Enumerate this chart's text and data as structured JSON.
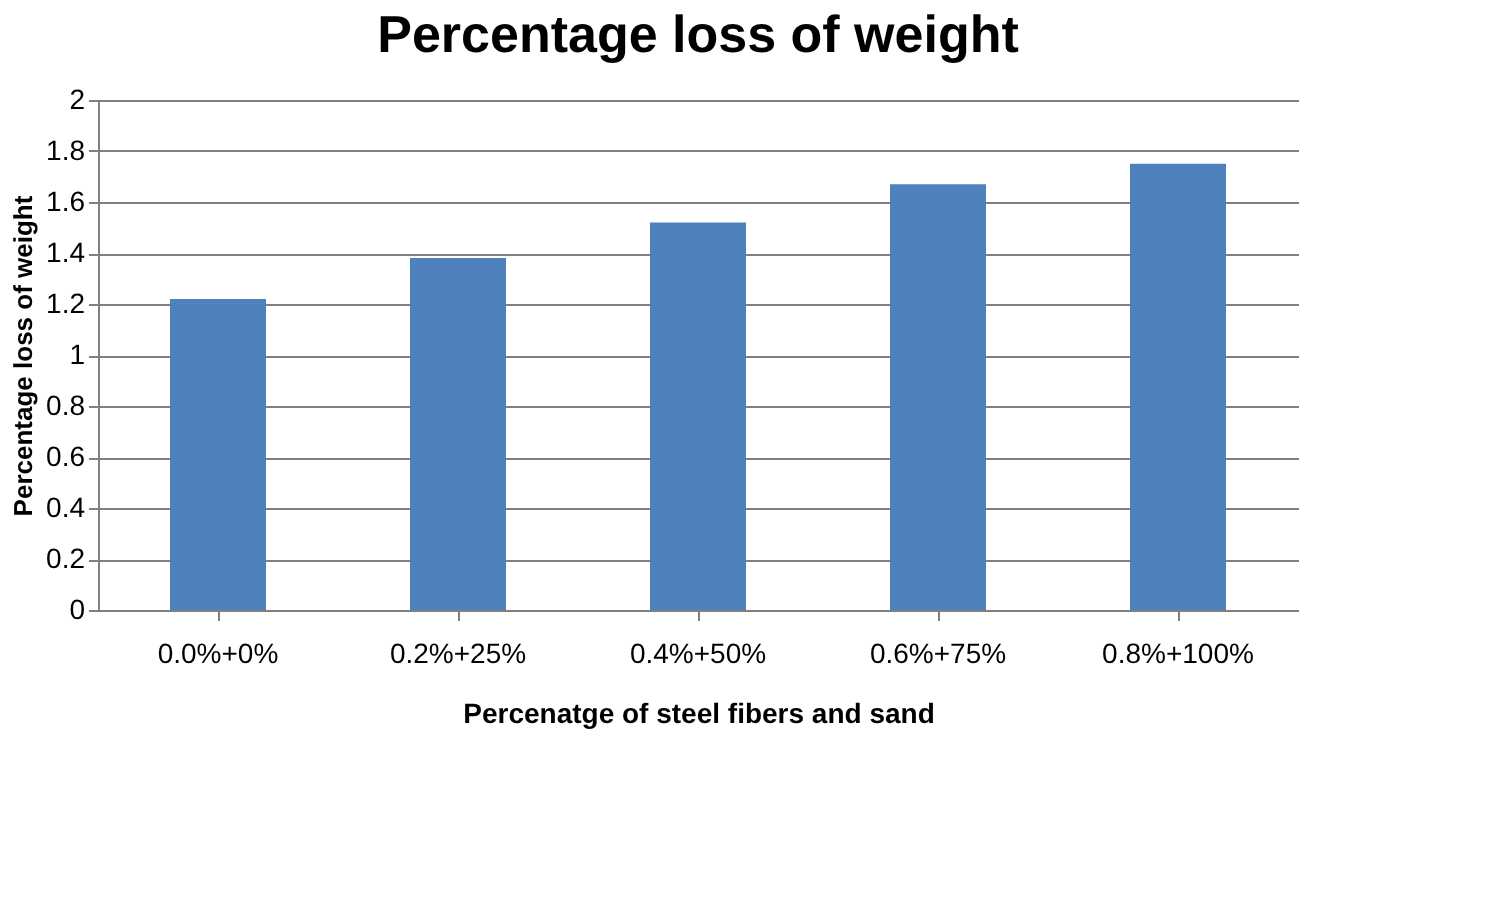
{
  "chart_data": {
    "type": "bar",
    "title": "Percentage loss of weight",
    "xlabel": "Percenatge of steel fibers and sand",
    "ylabel": "Percentage loss of weight",
    "categories": [
      "0.0%+0%",
      "0.2%+25%",
      "0.4%+50%",
      "0.6%+75%",
      "0.8%+100%"
    ],
    "values": [
      1.22,
      1.38,
      1.52,
      1.67,
      1.75
    ],
    "color": "#4f81bd",
    "ylim": [
      0,
      2
    ],
    "yticks": [
      0,
      0.2,
      0.4,
      0.6,
      0.8,
      1,
      1.2,
      1.4,
      1.6,
      1.8,
      2
    ],
    "grid": "y"
  }
}
